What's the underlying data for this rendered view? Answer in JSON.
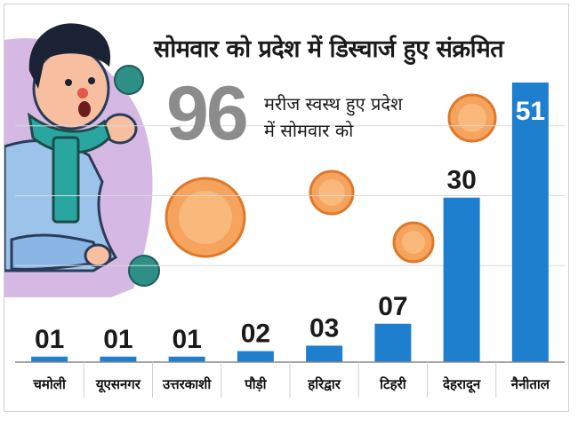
{
  "headline": {
    "title": "सोमवार को प्रदेश में डिस्चार्ज हुए संक्रमित",
    "total": "96",
    "subtitle_line1": "मरीज स्वस्थ हुए प्रदेश",
    "subtitle_line2": "में सोमवार को"
  },
  "chart_data": {
    "type": "bar",
    "categories": [
      "चमोली",
      "यूएसनगर",
      "उत्तरकाशी",
      "पौड़ी",
      "हरिद्वार",
      "टिहरी",
      "देहरादून",
      "नैनीताल"
    ],
    "values": [
      1,
      1,
      1,
      2,
      3,
      7,
      30,
      51
    ],
    "data_labels": [
      "01",
      "01",
      "01",
      "02",
      "03",
      "07",
      "30",
      "51"
    ],
    "ylim": [
      0,
      51
    ],
    "grid": true,
    "bar_color": "#1f7fcf"
  },
  "colors": {
    "bar": "#1f7fcf",
    "virus_orange": "#f08a3c",
    "virus_teal": "#2e8f86",
    "scarf_teal": "#2aa6a0",
    "shirt_blue": "#6fa8dc",
    "backdrop_lilac": "#c8a2d8"
  }
}
